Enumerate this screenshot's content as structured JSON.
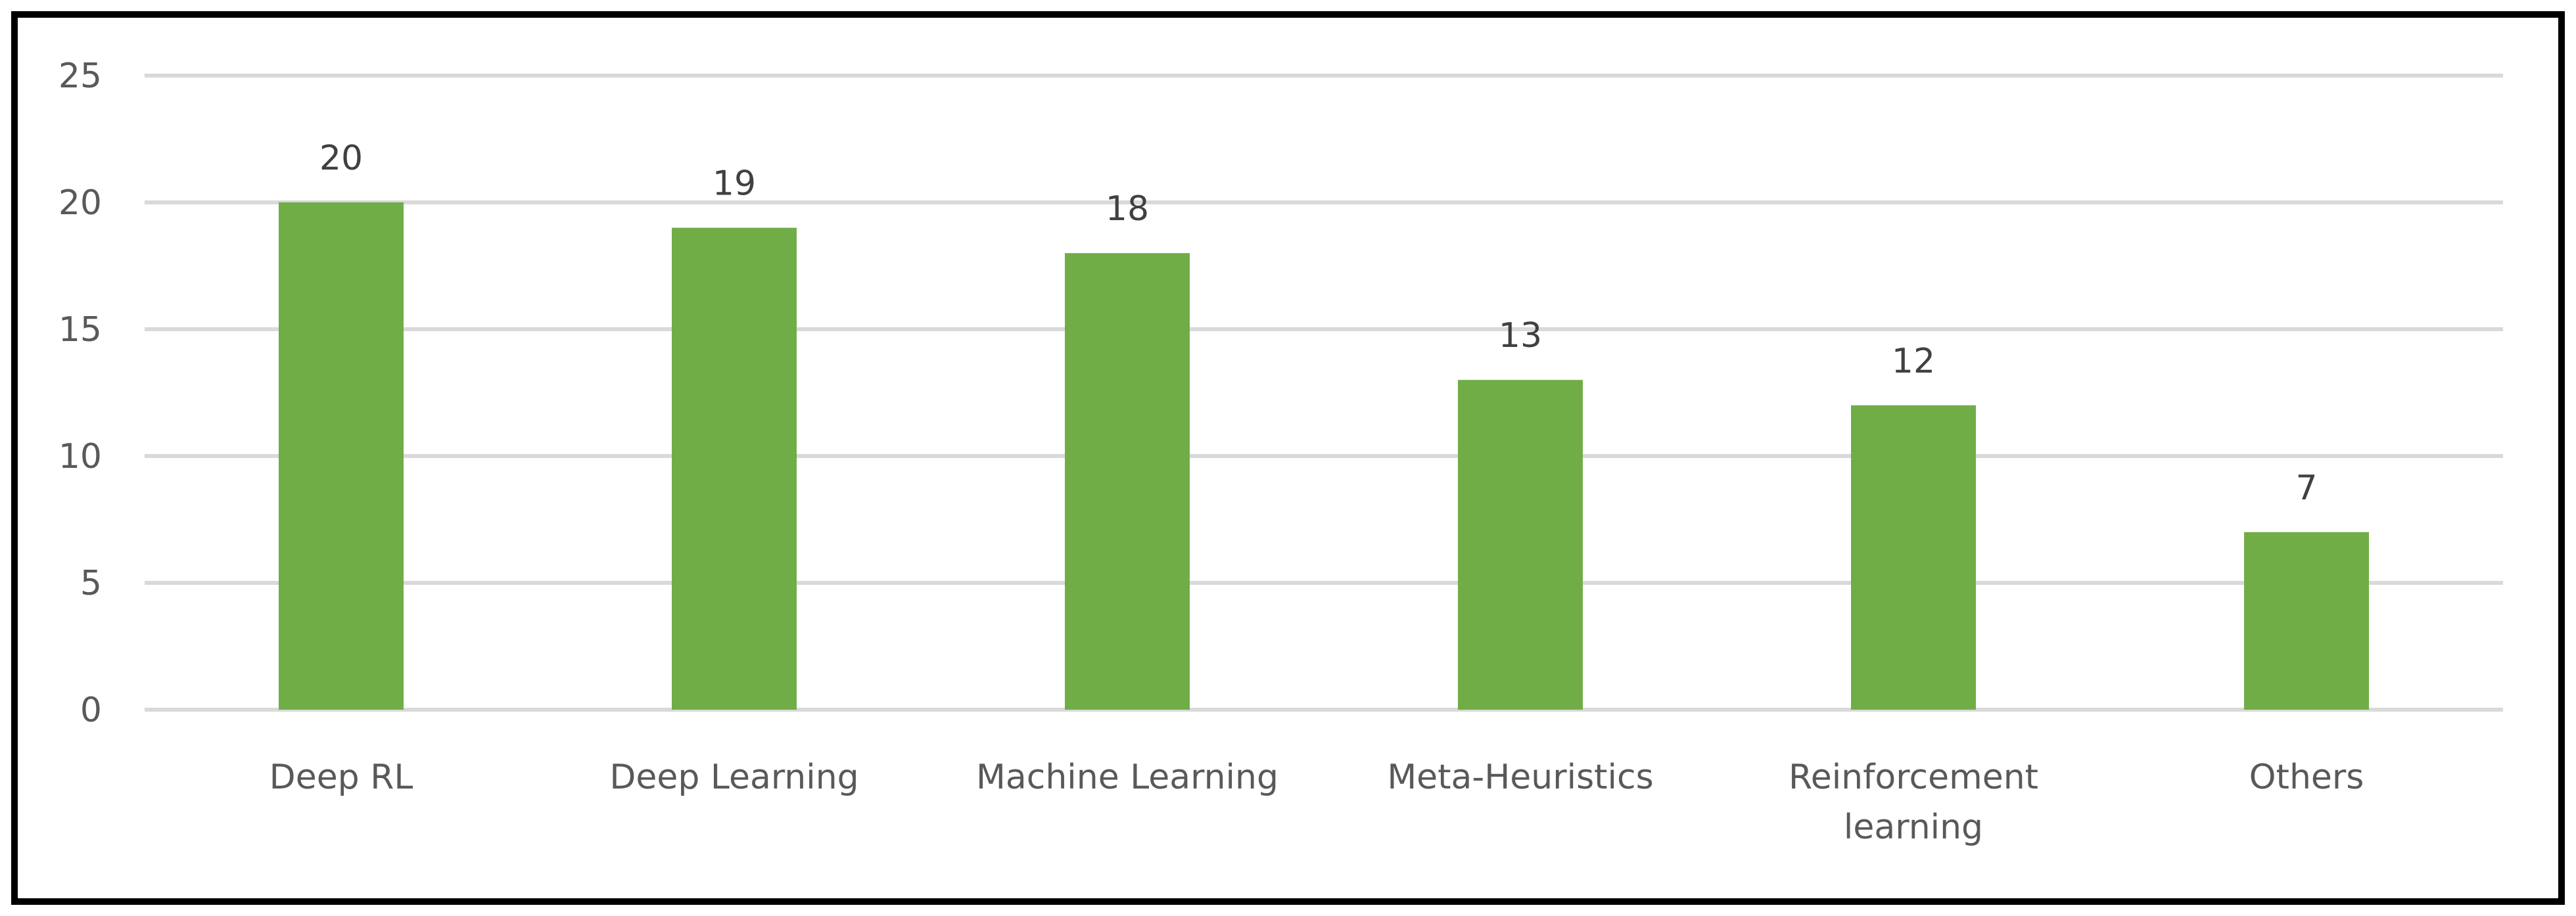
{
  "chart_data": {
    "type": "bar",
    "categories": [
      "Deep RL",
      "Deep Learning",
      "Machine Learning",
      "Meta-Heuristics",
      "Reinforcement learning",
      "Others"
    ],
    "category_lines": [
      [
        "Deep RL"
      ],
      [
        "Deep Learning"
      ],
      [
        "Machine Learning"
      ],
      [
        "Meta-Heuristics"
      ],
      [
        "Reinforcement",
        "learning"
      ],
      [
        "Others"
      ]
    ],
    "values": [
      20,
      19,
      18,
      13,
      12,
      7
    ],
    "data_labels": [
      "20",
      "19",
      "18",
      "13",
      "12",
      "7"
    ],
    "yticks": [
      "0",
      "5",
      "10",
      "15",
      "20",
      "25"
    ],
    "ylim": [
      0,
      25
    ],
    "title": "",
    "xlabel": "",
    "ylabel": "",
    "grid": true,
    "legend": "none",
    "colors": {
      "bar": "#70ad47",
      "grid": "#d9d9d9",
      "text": "#595959",
      "border": "#000000"
    }
  }
}
